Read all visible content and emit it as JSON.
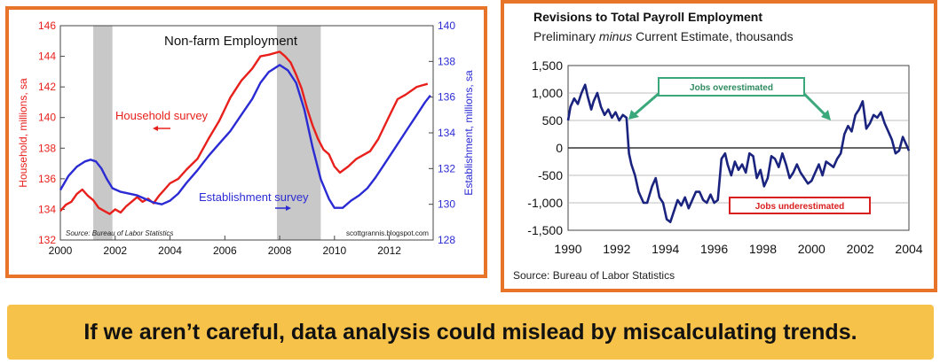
{
  "chart_data": [
    {
      "type": "line",
      "title": "Non-farm Employment",
      "ylabel": "Household, millions, sa",
      "y2label": "Establishment, millions, sa",
      "source": "Source:  Bureau of Labor Statistics",
      "credit": "scottgrannis.blogspot.com",
      "xlim": [
        2000,
        2013.6
      ],
      "ylim": [
        132,
        146
      ],
      "y2lim": [
        128,
        140
      ],
      "x_ticks": [
        "2000",
        "2002",
        "2004",
        "2006",
        "2008",
        "2010",
        "2012"
      ],
      "y_ticks": [
        "132",
        "134",
        "136",
        "138",
        "140",
        "142",
        "144",
        "146"
      ],
      "y2_ticks": [
        "128",
        "130",
        "132",
        "134",
        "136",
        "138",
        "140"
      ],
      "recessions": [
        [
          2001.2,
          2001.9
        ],
        [
          2007.9,
          2009.5
        ]
      ],
      "grid": false,
      "colors": {
        "household": "#e8201c",
        "establishment": "#2b2bd4",
        "recession": "#c8c8c8"
      },
      "series": [
        {
          "name": "Household survey",
          "axis": "left",
          "x": [
            2000.0,
            2000.2,
            2000.4,
            2000.6,
            2000.8,
            2001.0,
            2001.2,
            2001.4,
            2001.6,
            2001.8,
            2002.0,
            2002.2,
            2002.4,
            2002.6,
            2002.8,
            2003.0,
            2003.2,
            2003.4,
            2003.6,
            2003.8,
            2004.0,
            2004.3,
            2004.6,
            2005.0,
            2005.4,
            2005.8,
            2006.2,
            2006.6,
            2007.0,
            2007.3,
            2007.6,
            2008.0,
            2008.2,
            2008.4,
            2008.6,
            2008.8,
            2009.0,
            2009.2,
            2009.4,
            2009.6,
            2009.8,
            2010.0,
            2010.2,
            2010.5,
            2010.8,
            2011.0,
            2011.3,
            2011.6,
            2012.0,
            2012.3,
            2012.6,
            2013.0,
            2013.2,
            2013.4
          ],
          "values": [
            133.9,
            134.3,
            134.5,
            135.0,
            135.3,
            134.9,
            134.6,
            134.1,
            133.9,
            133.7,
            134.0,
            133.8,
            134.2,
            134.5,
            134.8,
            134.5,
            134.7,
            134.4,
            134.9,
            135.3,
            135.7,
            136.0,
            136.6,
            137.3,
            138.6,
            139.8,
            141.3,
            142.4,
            143.2,
            144.0,
            144.1,
            144.3,
            144.0,
            143.6,
            142.8,
            141.9,
            140.6,
            139.5,
            138.6,
            137.9,
            137.6,
            136.8,
            136.4,
            136.8,
            137.3,
            137.5,
            137.8,
            138.6,
            140.1,
            141.2,
            141.5,
            142.0,
            142.1,
            142.2
          ]
        },
        {
          "name": "Establishment survey",
          "axis": "right",
          "x": [
            2000.0,
            2000.3,
            2000.6,
            2000.9,
            2001.1,
            2001.3,
            2001.5,
            2001.7,
            2001.9,
            2002.2,
            2002.5,
            2002.8,
            2003.1,
            2003.4,
            2003.7,
            2004.0,
            2004.3,
            2004.6,
            2005.0,
            2005.4,
            2005.8,
            2006.2,
            2006.6,
            2007.0,
            2007.3,
            2007.6,
            2008.0,
            2008.3,
            2008.6,
            2008.9,
            2009.2,
            2009.5,
            2009.8,
            2010.0,
            2010.3,
            2010.6,
            2010.9,
            2011.2,
            2011.5,
            2011.8,
            2012.1,
            2012.4,
            2012.7,
            2013.0,
            2013.3,
            2013.5
          ],
          "values": [
            130.8,
            131.6,
            132.1,
            132.4,
            132.5,
            132.4,
            132.0,
            131.4,
            130.9,
            130.7,
            130.6,
            130.5,
            130.3,
            130.1,
            130.0,
            130.2,
            130.6,
            131.2,
            131.9,
            132.7,
            133.4,
            134.1,
            135.0,
            135.9,
            136.8,
            137.4,
            137.8,
            137.5,
            136.8,
            135.3,
            133.2,
            131.4,
            130.3,
            129.8,
            129.8,
            130.2,
            130.5,
            130.9,
            131.5,
            132.2,
            132.9,
            133.6,
            134.3,
            135.0,
            135.7,
            136.1
          ]
        }
      ],
      "annotations": [
        "Household survey",
        "Establishment survey"
      ]
    },
    {
      "type": "line",
      "title": "Revisions to Total Payroll Employment",
      "subtitle_parts": [
        "Preliminary ",
        "minus",
        " Current Estimate, thousands"
      ],
      "source": "Source: Bureau of Labor Statistics",
      "xlim": [
        1990,
        2004
      ],
      "ylim": [
        -1500,
        1500
      ],
      "x_ticks": [
        "1990",
        "1992",
        "1994",
        "1996",
        "1998",
        "2000",
        "2002",
        "2004"
      ],
      "y_ticks": [
        "1,500",
        "1,000",
        "500",
        "0",
        "-500",
        "-1,000",
        "-1,500"
      ],
      "grid": true,
      "colors": {
        "series": "#1a237e",
        "overestimated": "#3aa87a",
        "underestimated": "#d92020"
      },
      "series": [
        {
          "name": "",
          "x": [
            1990.0,
            1990.1,
            1990.25,
            1990.4,
            1990.55,
            1990.7,
            1990.8,
            1990.95,
            1991.05,
            1991.2,
            1991.35,
            1991.5,
            1991.65,
            1991.8,
            1991.95,
            1992.1,
            1992.25,
            1992.4,
            1992.5,
            1992.6,
            1992.75,
            1992.9,
            1993.1,
            1993.25,
            1993.45,
            1993.6,
            1993.75,
            1993.9,
            1994.05,
            1994.2,
            1994.35,
            1994.5,
            1994.65,
            1994.8,
            1994.95,
            1995.1,
            1995.25,
            1995.4,
            1995.55,
            1995.7,
            1995.85,
            1996.0,
            1996.15,
            1996.3,
            1996.45,
            1996.55,
            1996.7,
            1996.85,
            1997.0,
            1997.15,
            1997.3,
            1997.45,
            1997.6,
            1997.75,
            1997.9,
            1998.05,
            1998.2,
            1998.35,
            1998.5,
            1998.65,
            1998.8,
            1998.95,
            1999.1,
            1999.25,
            1999.4,
            1999.55,
            1999.7,
            1999.85,
            2000.0,
            2000.15,
            2000.3,
            2000.45,
            2000.6,
            2000.75,
            2000.9,
            2001.05,
            2001.2,
            2001.35,
            2001.5,
            2001.65,
            2001.8,
            2001.95,
            2002.1,
            2002.25,
            2002.4,
            2002.55,
            2002.7,
            2002.85,
            2003.0,
            2003.15,
            2003.3,
            2003.45,
            2003.6,
            2003.75,
            2003.9,
            2004.0
          ],
          "values": [
            500,
            750,
            900,
            800,
            1000,
            1150,
            950,
            700,
            850,
            1000,
            750,
            600,
            700,
            550,
            650,
            500,
            600,
            550,
            -100,
            -300,
            -500,
            -800,
            -1000,
            -1000,
            -700,
            -550,
            -900,
            -1000,
            -1300,
            -1350,
            -1150,
            -950,
            -1050,
            -900,
            -1100,
            -950,
            -800,
            -800,
            -950,
            -1000,
            -850,
            -1000,
            -950,
            -200,
            -100,
            -300,
            -500,
            -250,
            -400,
            -300,
            -450,
            -100,
            -150,
            -550,
            -400,
            -700,
            -550,
            -150,
            -200,
            -350,
            -100,
            -300,
            -550,
            -450,
            -300,
            -450,
            -550,
            -650,
            -600,
            -450,
            -300,
            -500,
            -250,
            -300,
            -350,
            -200,
            -100,
            250,
            400,
            300,
            600,
            700,
            850,
            350,
            450,
            600,
            550,
            650,
            450,
            300,
            150,
            -100,
            -50,
            200,
            50,
            -50
          ]
        }
      ],
      "annotations": [
        "Jobs overestimated",
        "Jobs underestimated"
      ]
    }
  ],
  "banner": {
    "text": "If we aren’t careful, data analysis could mislead by miscalculating trends."
  }
}
